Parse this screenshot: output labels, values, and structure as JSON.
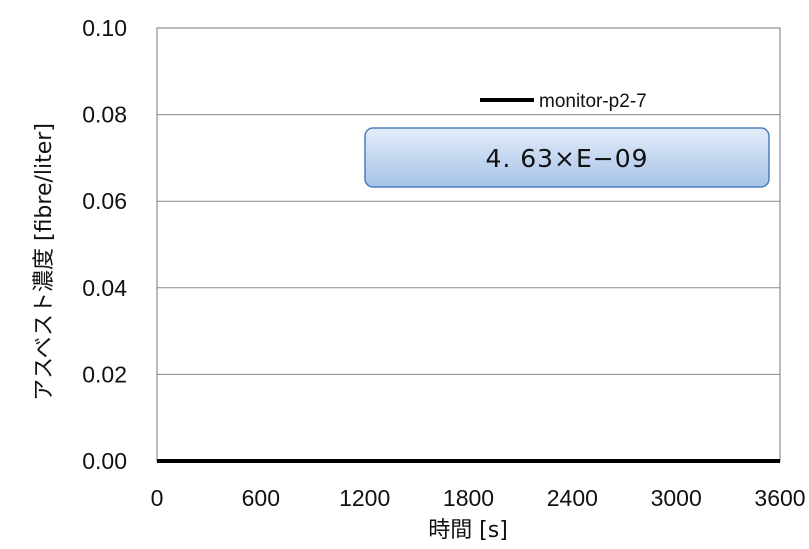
{
  "chart_data": {
    "type": "line",
    "title": "",
    "xlabel": "時間 [s]",
    "ylabel": "アスベスト濃度 [fibre/liter]",
    "xlim": [
      0,
      3600
    ],
    "ylim": [
      0,
      0.1
    ],
    "x_ticks": [
      "0",
      "600",
      "1200",
      "1800",
      "2400",
      "3000",
      "3600"
    ],
    "y_ticks": [
      "0.00",
      "0.02",
      "0.04",
      "0.06",
      "0.08",
      "0.10"
    ],
    "grid": true,
    "legend_position": "top-right",
    "series": [
      {
        "name": "monitor-p2-7",
        "color": "#000000",
        "x": [
          0,
          600,
          1200,
          1800,
          2400,
          3000,
          3600
        ],
        "y": [
          0,
          0,
          0,
          0,
          0,
          0,
          0
        ]
      }
    ],
    "annotation": "4. 63×E−09"
  }
}
